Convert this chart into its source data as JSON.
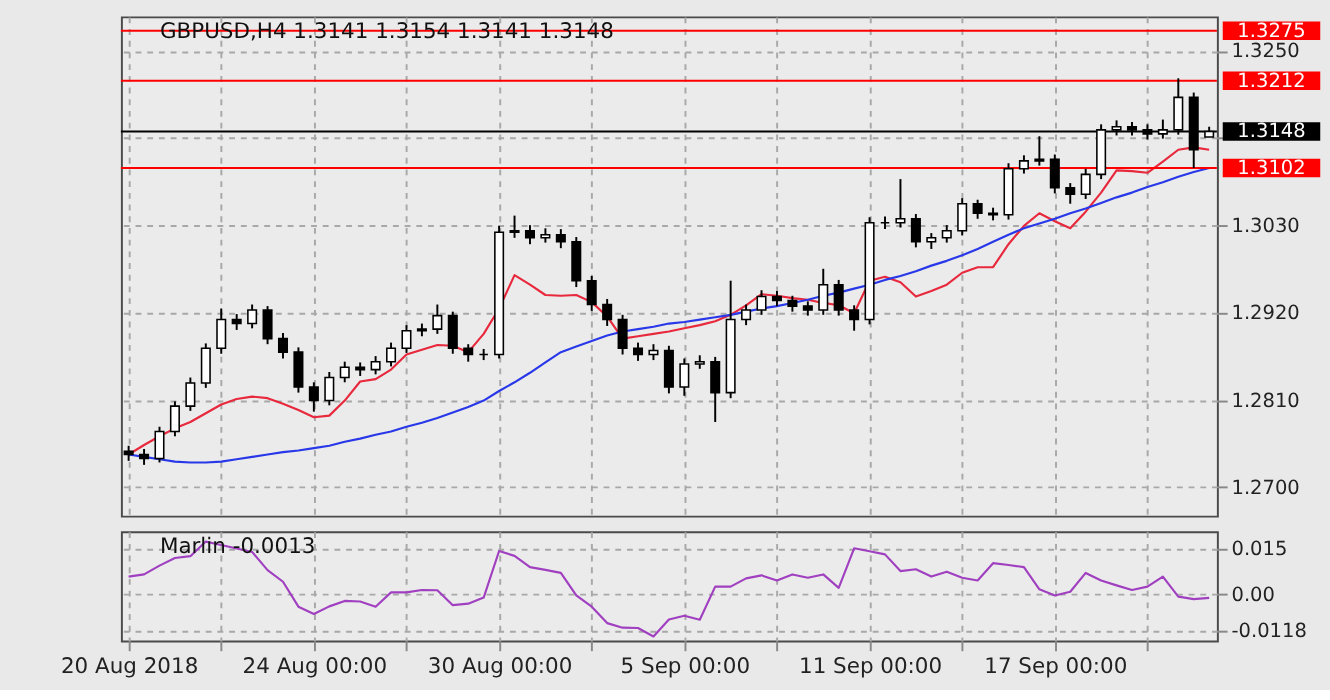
{
  "chart_data": [
    {
      "type": "candlestick",
      "title": "GBPUSD,H4 1.3141 1.3154 1.3141 1.3148",
      "color": "#000000",
      "categories": [
        null,
        null,
        null,
        null,
        null,
        null,
        null,
        null,
        null,
        null,
        null,
        null,
        null,
        null,
        null,
        null,
        null,
        null,
        null,
        null,
        null,
        null,
        null,
        null,
        null,
        null,
        null,
        null,
        null,
        null,
        null,
        null,
        null,
        null,
        null,
        null,
        null,
        null,
        null,
        null,
        null,
        null,
        null,
        null,
        null,
        null,
        null,
        null,
        null,
        null,
        null,
        null,
        null,
        null,
        null,
        null,
        null,
        null,
        null,
        null,
        null,
        null,
        null,
        null,
        null,
        null,
        null,
        null,
        null,
        null,
        null
      ],
      "ohlc": [
        [
          1.2745,
          1.2752,
          1.2733,
          1.2741
        ],
        [
          1.2741,
          1.2748,
          1.2728,
          1.2736
        ],
        [
          1.2736,
          1.2776,
          1.2731,
          1.277
        ],
        [
          1.277,
          1.2808,
          1.2764,
          1.2802
        ],
        [
          1.2802,
          1.2838,
          1.2796,
          1.2831
        ],
        [
          1.2831,
          1.2881,
          1.2825,
          1.2875
        ],
        [
          1.2875,
          1.2925,
          1.2868,
          1.2911
        ],
        [
          1.2911,
          1.2918,
          1.2898,
          1.2906
        ],
        [
          1.2906,
          1.293,
          1.29,
          1.2923
        ],
        [
          1.2923,
          1.2928,
          1.288,
          1.2887
        ],
        [
          1.2887,
          1.2894,
          1.2862,
          1.287
        ],
        [
          1.287,
          1.2876,
          1.2819,
          1.2826
        ],
        [
          1.2826,
          1.2832,
          1.2795,
          1.2809
        ],
        [
          1.2809,
          1.2845,
          1.2803,
          1.2838
        ],
        [
          1.2838,
          1.2858,
          1.2832,
          1.2851
        ],
        [
          1.2851,
          1.2857,
          1.284,
          1.2848
        ],
        [
          1.2848,
          1.2865,
          1.2842,
          1.2858
        ],
        [
          1.2858,
          1.2882,
          1.2852,
          1.2875
        ],
        [
          1.2875,
          1.2904,
          1.2869,
          1.2897
        ],
        [
          1.2897,
          1.2906,
          1.289,
          1.2899
        ],
        [
          1.2899,
          1.293,
          1.2893,
          1.2916
        ],
        [
          1.2916,
          1.2921,
          1.2868,
          1.2875
        ],
        [
          1.2875,
          1.288,
          1.2858,
          1.2867
        ],
        [
          1.2867,
          1.2874,
          1.286,
          1.2867
        ],
        [
          1.2867,
          1.3029,
          1.2862,
          1.3021
        ],
        [
          1.3021,
          1.3042,
          1.3014,
          1.3023
        ],
        [
          1.3023,
          1.303,
          1.3006,
          1.3014
        ],
        [
          1.3014,
          1.3026,
          1.3008,
          1.3018
        ],
        [
          1.3018,
          1.3025,
          1.3001,
          1.3009
        ],
        [
          1.3009,
          1.3015,
          1.2952,
          1.296
        ],
        [
          1.296,
          1.2966,
          1.2922,
          1.293
        ],
        [
          1.293,
          1.2937,
          1.2903,
          1.2911
        ],
        [
          1.2911,
          1.2917,
          1.2867,
          1.2875
        ],
        [
          1.2875,
          1.2882,
          1.2859,
          1.2867
        ],
        [
          1.2867,
          1.288,
          1.286,
          1.2872
        ],
        [
          1.2872,
          1.2878,
          1.2818,
          1.2826
        ],
        [
          1.2826,
          1.2862,
          1.2815,
          1.2855
        ],
        [
          1.2855,
          1.2866,
          1.2849,
          1.2858
        ],
        [
          1.2858,
          1.2864,
          1.2782,
          1.2819
        ],
        [
          1.2819,
          1.296,
          1.2812,
          1.2911
        ],
        [
          1.2911,
          1.293,
          1.2904,
          1.2923
        ],
        [
          1.2923,
          1.2948,
          1.2917,
          1.294
        ],
        [
          1.294,
          1.2947,
          1.2928,
          1.2935
        ],
        [
          1.2935,
          1.2941,
          1.2921,
          1.2928
        ],
        [
          1.2928,
          1.2934,
          1.2916,
          1.2923
        ],
        [
          1.2923,
          1.2975,
          1.2917,
          1.2955
        ],
        [
          1.2955,
          1.2961,
          1.2916,
          1.2923
        ],
        [
          1.2923,
          1.2929,
          1.2897,
          1.2911
        ],
        [
          1.2911,
          1.304,
          1.2905,
          1.3033
        ],
        [
          1.3033,
          1.3041,
          1.3025,
          1.3033
        ],
        [
          1.3033,
          1.3088,
          1.3027,
          1.3038
        ],
        [
          1.3038,
          1.3044,
          1.3002,
          1.3009
        ],
        [
          1.3009,
          1.302,
          1.3,
          1.3014
        ],
        [
          1.3014,
          1.303,
          1.3008,
          1.3023
        ],
        [
          1.3023,
          1.3064,
          1.3017,
          1.3057
        ],
        [
          1.3057,
          1.3062,
          1.3038,
          1.3045
        ],
        [
          1.3045,
          1.3052,
          1.3036,
          1.3043
        ],
        [
          1.3043,
          1.3108,
          1.3037,
          1.3101
        ],
        [
          1.3101,
          1.3118,
          1.3095,
          1.3111
        ],
        [
          1.3111,
          1.3142,
          1.3105,
          1.3113
        ],
        [
          1.3113,
          1.3119,
          1.307,
          1.3077
        ],
        [
          1.3077,
          1.3083,
          1.3057,
          1.3069
        ],
        [
          1.3069,
          1.3101,
          1.3063,
          1.3094
        ],
        [
          1.3094,
          1.3157,
          1.3088,
          1.315
        ],
        [
          1.315,
          1.3162,
          1.3143,
          1.3154
        ],
        [
          1.3154,
          1.316,
          1.3143,
          1.315
        ],
        [
          1.315,
          1.3157,
          1.3138,
          1.3145
        ],
        [
          1.3145,
          1.3163,
          1.3139,
          1.315
        ],
        [
          1.315,
          1.3215,
          1.3144,
          1.3191
        ],
        [
          1.3191,
          1.3197,
          1.3102,
          1.3125
        ],
        [
          1.3141,
          1.3154,
          1.3141,
          1.3148
        ]
      ],
      "series": [
        {
          "type": "line",
          "color": "#e8283c",
          "values": [
            1.2741,
            1.2753,
            1.2764,
            1.2774,
            1.2782,
            1.2793,
            1.2804,
            1.2811,
            1.2814,
            1.2812,
            1.2805,
            1.2797,
            1.2788,
            1.279,
            1.2809,
            1.2833,
            1.2836,
            1.2848,
            1.2867,
            1.2873,
            1.2879,
            1.2878,
            1.287,
            1.2893,
            1.2925,
            1.2967,
            1.2955,
            1.2942,
            1.2941,
            1.2942,
            1.2933,
            1.2915,
            1.2887,
            1.289,
            1.2893,
            1.2896,
            1.29,
            1.2904,
            1.2909,
            1.2917,
            1.2929,
            1.2943,
            1.2941,
            1.2938,
            1.2936,
            1.2932,
            1.2929,
            1.2919,
            1.296,
            1.2965,
            1.2958,
            1.294,
            1.2947,
            1.2955,
            1.297,
            1.2977,
            1.2977,
            1.3006,
            1.3029,
            1.3045,
            1.3035,
            1.3026,
            1.3047,
            1.3071,
            1.3099,
            1.3098,
            1.3096,
            1.311,
            1.3125,
            1.3128,
            1.3125
          ]
        },
        {
          "type": "line",
          "color": "#2838e8",
          "values": [
            1.2741,
            1.2738,
            1.2735,
            1.2732,
            1.2731,
            1.2731,
            1.2732,
            1.2735,
            1.2738,
            1.2741,
            1.2744,
            1.2746,
            1.2749,
            1.2752,
            1.2757,
            1.2761,
            1.2766,
            1.277,
            1.2776,
            1.2781,
            1.2787,
            1.2794,
            1.2801,
            1.2809,
            1.2821,
            1.2832,
            1.2844,
            1.2857,
            1.287,
            1.2877,
            1.2884,
            1.2891,
            1.2896,
            1.2899,
            1.2902,
            1.2906,
            1.2908,
            1.2911,
            1.2914,
            1.2917,
            1.2921,
            1.2925,
            1.2928,
            1.2932,
            1.2936,
            1.2941,
            1.2945,
            1.295,
            1.2955,
            1.2961,
            1.2966,
            1.2972,
            1.2979,
            1.2985,
            1.2992,
            1.3,
            1.3009,
            1.3018,
            1.3026,
            1.3032,
            1.3038,
            1.3045,
            1.3051,
            1.3058,
            1.3065,
            1.3071,
            1.3078,
            1.3084,
            1.3091,
            1.3097,
            1.3102
          ]
        }
      ],
      "ref_lines": [
        {
          "axis": "y",
          "value": 1.3275,
          "label": "1.3275",
          "color": "#ff0000"
        },
        {
          "axis": "y",
          "value": 1.3212,
          "label": "1.3212",
          "color": "#ff0000"
        },
        {
          "axis": "y",
          "value": 1.3102,
          "label": "1.3102",
          "color": "#ff0000"
        },
        {
          "axis": "y",
          "value": 1.3148,
          "label": "1.3148",
          "color": "#000000"
        }
      ],
      "ylim": [
        1.2664,
        1.3293
      ],
      "yticks": [
        {
          "value": 1.325,
          "label": "1.3250"
        },
        {
          "value": 1.314,
          "label": null
        },
        {
          "value": 1.303,
          "label": "1.3030"
        },
        {
          "value": 1.292,
          "label": "1.2920"
        },
        {
          "value": 1.281,
          "label": "1.2810"
        },
        {
          "value": 1.27,
          "label": "1.2700"
        }
      ],
      "grid": true,
      "tick_labels": "y"
    },
    {
      "type": "line",
      "title": "Marlin -0.0013",
      "color": "#a040c0",
      "categories": [
        "20 Aug 2018",
        null,
        null,
        null,
        null,
        null,
        null,
        null,
        null,
        null,
        null,
        null,
        "24 Aug 00:00",
        null,
        null,
        null,
        null,
        null,
        null,
        null,
        null,
        null,
        null,
        null,
        "30 Aug 00:00",
        null,
        null,
        null,
        null,
        null,
        null,
        null,
        null,
        null,
        null,
        null,
        "5 Sep 00:00",
        null,
        null,
        null,
        null,
        null,
        null,
        null,
        null,
        null,
        null,
        null,
        "11 Sep 00:00",
        null,
        null,
        null,
        null,
        null,
        null,
        null,
        null,
        null,
        null,
        null,
        "17 Sep 00:00",
        null,
        null,
        null,
        null,
        null,
        null,
        null,
        null,
        null,
        null
      ],
      "values": [
        0.0057,
        0.0064,
        0.0093,
        0.0118,
        0.0124,
        0.0172,
        0.0161,
        0.0149,
        0.0138,
        0.0078,
        0.004,
        -0.0042,
        -0.0066,
        -0.0041,
        -0.0023,
        -0.0025,
        -0.0042,
        0.0005,
        0.0005,
        0.0013,
        0.0012,
        -0.0037,
        -0.0032,
        -0.0012,
        0.0141,
        0.0125,
        0.0088,
        0.0079,
        0.0069,
        -0.0005,
        -0.0042,
        -0.0096,
        -0.0111,
        -0.0112,
        -0.014,
        -0.0084,
        -0.0072,
        -0.0085,
        0.0024,
        0.0024,
        0.0051,
        0.0061,
        0.0044,
        0.0064,
        0.0053,
        0.0064,
        0.002,
        0.015,
        0.014,
        0.013,
        0.0075,
        0.0081,
        0.0057,
        0.0073,
        0.0053,
        0.0044,
        0.0101,
        0.0095,
        0.0088,
        0.0015,
        -0.0005,
        0.0007,
        0.0069,
        0.0044,
        0.0028,
        0.0013,
        0.0024,
        0.0057,
        -0.0009,
        -0.0017,
        -0.0013
      ],
      "ylim": [
        -0.0153,
        0.0206
      ],
      "yticks": [
        0.015,
        {
          "value": 0,
          "label": "0.00"
        },
        -0.0118
      ],
      "grid": true
    }
  ]
}
